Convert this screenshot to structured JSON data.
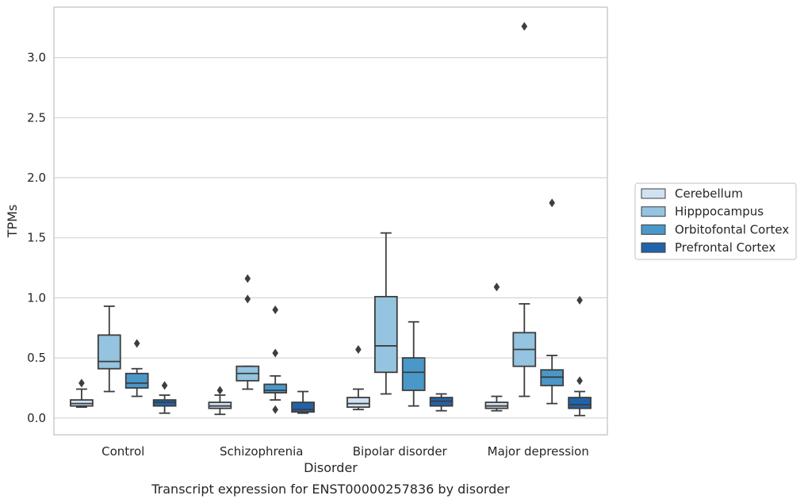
{
  "chart_data": {
    "type": "box",
    "title": "",
    "caption": "Transcript expression for ENST00000257836 by disorder",
    "xlabel": "Disorder",
    "ylabel": "TPMs",
    "ylim": [
      -0.14,
      3.42
    ],
    "yticks": [
      "0.0",
      "0.5",
      "1.0",
      "1.5",
      "2.0",
      "2.5",
      "3.0"
    ],
    "grid": "horizontal",
    "legend_position": "right",
    "categories": [
      "Control",
      "Schizophrenia",
      "Bipolar disorder",
      "Major depression"
    ],
    "series": [
      {
        "name": "Cerebellum",
        "color": "#d0e1f2",
        "boxes": [
          {
            "whislo": 0.09,
            "q1": 0.1,
            "med": 0.12,
            "q3": 0.15,
            "whishi": 0.24,
            "fliers": [
              0.29
            ]
          },
          {
            "whislo": 0.03,
            "q1": 0.08,
            "med": 0.1,
            "q3": 0.13,
            "whishi": 0.19,
            "fliers": [
              0.23
            ]
          },
          {
            "whislo": 0.07,
            "q1": 0.09,
            "med": 0.12,
            "q3": 0.17,
            "whishi": 0.24,
            "fliers": [
              0.57
            ]
          },
          {
            "whislo": 0.06,
            "q1": 0.08,
            "med": 0.1,
            "q3": 0.13,
            "whishi": 0.18,
            "fliers": [
              1.09
            ]
          }
        ]
      },
      {
        "name": "Hipppocampus",
        "color": "#94c4df",
        "boxes": [
          {
            "whislo": 0.22,
            "q1": 0.41,
            "med": 0.47,
            "q3": 0.69,
            "whishi": 0.93,
            "fliers": []
          },
          {
            "whislo": 0.24,
            "q1": 0.31,
            "med": 0.37,
            "q3": 0.43,
            "whishi": 0.43,
            "fliers": [
              1.16,
              0.99
            ]
          },
          {
            "whislo": 0.2,
            "q1": 0.38,
            "med": 0.6,
            "q3": 1.01,
            "whishi": 1.54,
            "fliers": []
          },
          {
            "whislo": 0.18,
            "q1": 0.43,
            "med": 0.57,
            "q3": 0.71,
            "whishi": 0.95,
            "fliers": [
              3.26
            ]
          }
        ]
      },
      {
        "name": "Orbitofontal Cortex",
        "color": "#4a98c9",
        "boxes": [
          {
            "whislo": 0.18,
            "q1": 0.25,
            "med": 0.29,
            "q3": 0.37,
            "whishi": 0.41,
            "fliers": [
              0.62
            ]
          },
          {
            "whislo": 0.15,
            "q1": 0.21,
            "med": 0.23,
            "q3": 0.28,
            "whishi": 0.35,
            "fliers": [
              0.9,
              0.54,
              0.07
            ]
          },
          {
            "whislo": 0.1,
            "q1": 0.23,
            "med": 0.38,
            "q3": 0.5,
            "whishi": 0.8,
            "fliers": []
          },
          {
            "whislo": 0.12,
            "q1": 0.27,
            "med": 0.34,
            "q3": 0.4,
            "whishi": 0.52,
            "fliers": [
              1.79
            ]
          }
        ]
      },
      {
        "name": "Prefrontal Cortex",
        "color": "#2163aa",
        "boxes": [
          {
            "whislo": 0.04,
            "q1": 0.1,
            "med": 0.13,
            "q3": 0.15,
            "whishi": 0.19,
            "fliers": [
              0.27
            ]
          },
          {
            "whislo": 0.04,
            "q1": 0.05,
            "med": 0.07,
            "q3": 0.13,
            "whishi": 0.22,
            "fliers": []
          },
          {
            "whislo": 0.06,
            "q1": 0.1,
            "med": 0.14,
            "q3": 0.17,
            "whishi": 0.2,
            "fliers": []
          },
          {
            "whislo": 0.02,
            "q1": 0.08,
            "med": 0.11,
            "q3": 0.17,
            "whishi": 0.22,
            "fliers": [
              0.98,
              0.31
            ]
          }
        ]
      }
    ]
  }
}
